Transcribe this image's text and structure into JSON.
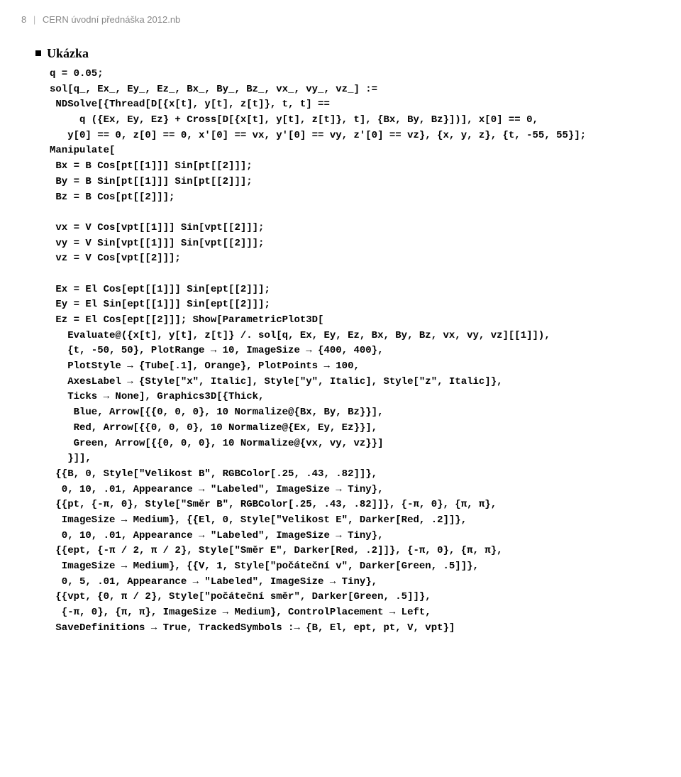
{
  "header": {
    "page_number": "8",
    "title": "CERN úvodní přednáška 2012.nb"
  },
  "section": {
    "title": "Ukázka"
  },
  "code": {
    "lines": [
      "q = 0.05;",
      "sol[q_, Ex_, Ey_, Ez_, Bx_, By_, Bz_, vx_, vy_, vz_] :=",
      " NDSolve[{Thread[D[{x[t], y[t], z[t]}, t, t] ==",
      "     q ({Ex, Ey, Ez} + Cross[D[{x[t], y[t], z[t]}, t], {Bx, By, Bz}])], x[0] == 0,",
      "   y[0] == 0, z[0] == 0, x'[0] == vx, y'[0] == vy, z'[0] == vz}, {x, y, z}, {t, -55, 55}];",
      "Manipulate[",
      " Bx = B Cos[pt[[1]]] Sin[pt[[2]]];",
      " By = B Sin[pt[[1]]] Sin[pt[[2]]];",
      " Bz = B Cos[pt[[2]]];",
      "",
      " vx = V Cos[vpt[[1]]] Sin[vpt[[2]]];",
      " vy = V Sin[vpt[[1]]] Sin[vpt[[2]]];",
      " vz = V Cos[vpt[[2]]];",
      "",
      " Ex = El Cos[ept[[1]]] Sin[ept[[2]]];",
      " Ey = El Sin[ept[[1]]] Sin[ept[[2]]];",
      " Ez = El Cos[ept[[2]]]; Show[ParametricPlot3D[",
      "   Evaluate@({x[t], y[t], z[t]} /. sol[q, Ex, Ey, Ez, Bx, By, Bz, vx, vy, vz][[1]]),",
      "   {t, -50, 50}, PlotRange → 10, ImageSize → {400, 400},",
      "   PlotStyle → {Tube[.1], Orange}, PlotPoints → 100,",
      "   AxesLabel → {Style[\"x\", Italic], Style[\"y\", Italic], Style[\"z\", Italic]},",
      "   Ticks → None], Graphics3D[{Thick,",
      "    Blue, Arrow[{{0, 0, 0}, 10 Normalize@{Bx, By, Bz}}],",
      "    Red, Arrow[{{0, 0, 0}, 10 Normalize@{Ex, Ey, Ez}}],",
      "    Green, Arrow[{{0, 0, 0}, 10 Normalize@{vx, vy, vz}}]",
      "   }]],",
      " {{B, 0, Style[\"Velikost B\", RGBColor[.25, .43, .82]]},",
      "  0, 10, .01, Appearance → \"Labeled\", ImageSize → Tiny},",
      " {{pt, {-π, 0}, Style[\"Směr B\", RGBColor[.25, .43, .82]]}, {-π, 0}, {π, π},",
      "  ImageSize → Medium}, {{El, 0, Style[\"Velikost E\", Darker[Red, .2]]},",
      "  0, 10, .01, Appearance → \"Labeled\", ImageSize → Tiny},",
      " {{ept, {-π / 2, π / 2}, Style[\"Směr E\", Darker[Red, .2]]}, {-π, 0}, {π, π},",
      "  ImageSize → Medium}, {{V, 1, Style[\"počáteční v\", Darker[Green, .5]]},",
      "  0, 5, .01, Appearance → \"Labeled\", ImageSize → Tiny},",
      " {{vpt, {0, π / 2}, Style[\"počáteční směr\", Darker[Green, .5]]},",
      "  {-π, 0}, {π, π}, ImageSize → Medium}, ControlPlacement → Left,",
      " SaveDefinitions → True, TrackedSymbols :→ {B, El, ept, pt, V, vpt}]"
    ]
  },
  "styles": {
    "background": "#ffffff",
    "text_color": "#000000",
    "header_color": "#888888",
    "code_fontsize": 14,
    "header_fontsize": 13,
    "title_fontsize": 18
  }
}
